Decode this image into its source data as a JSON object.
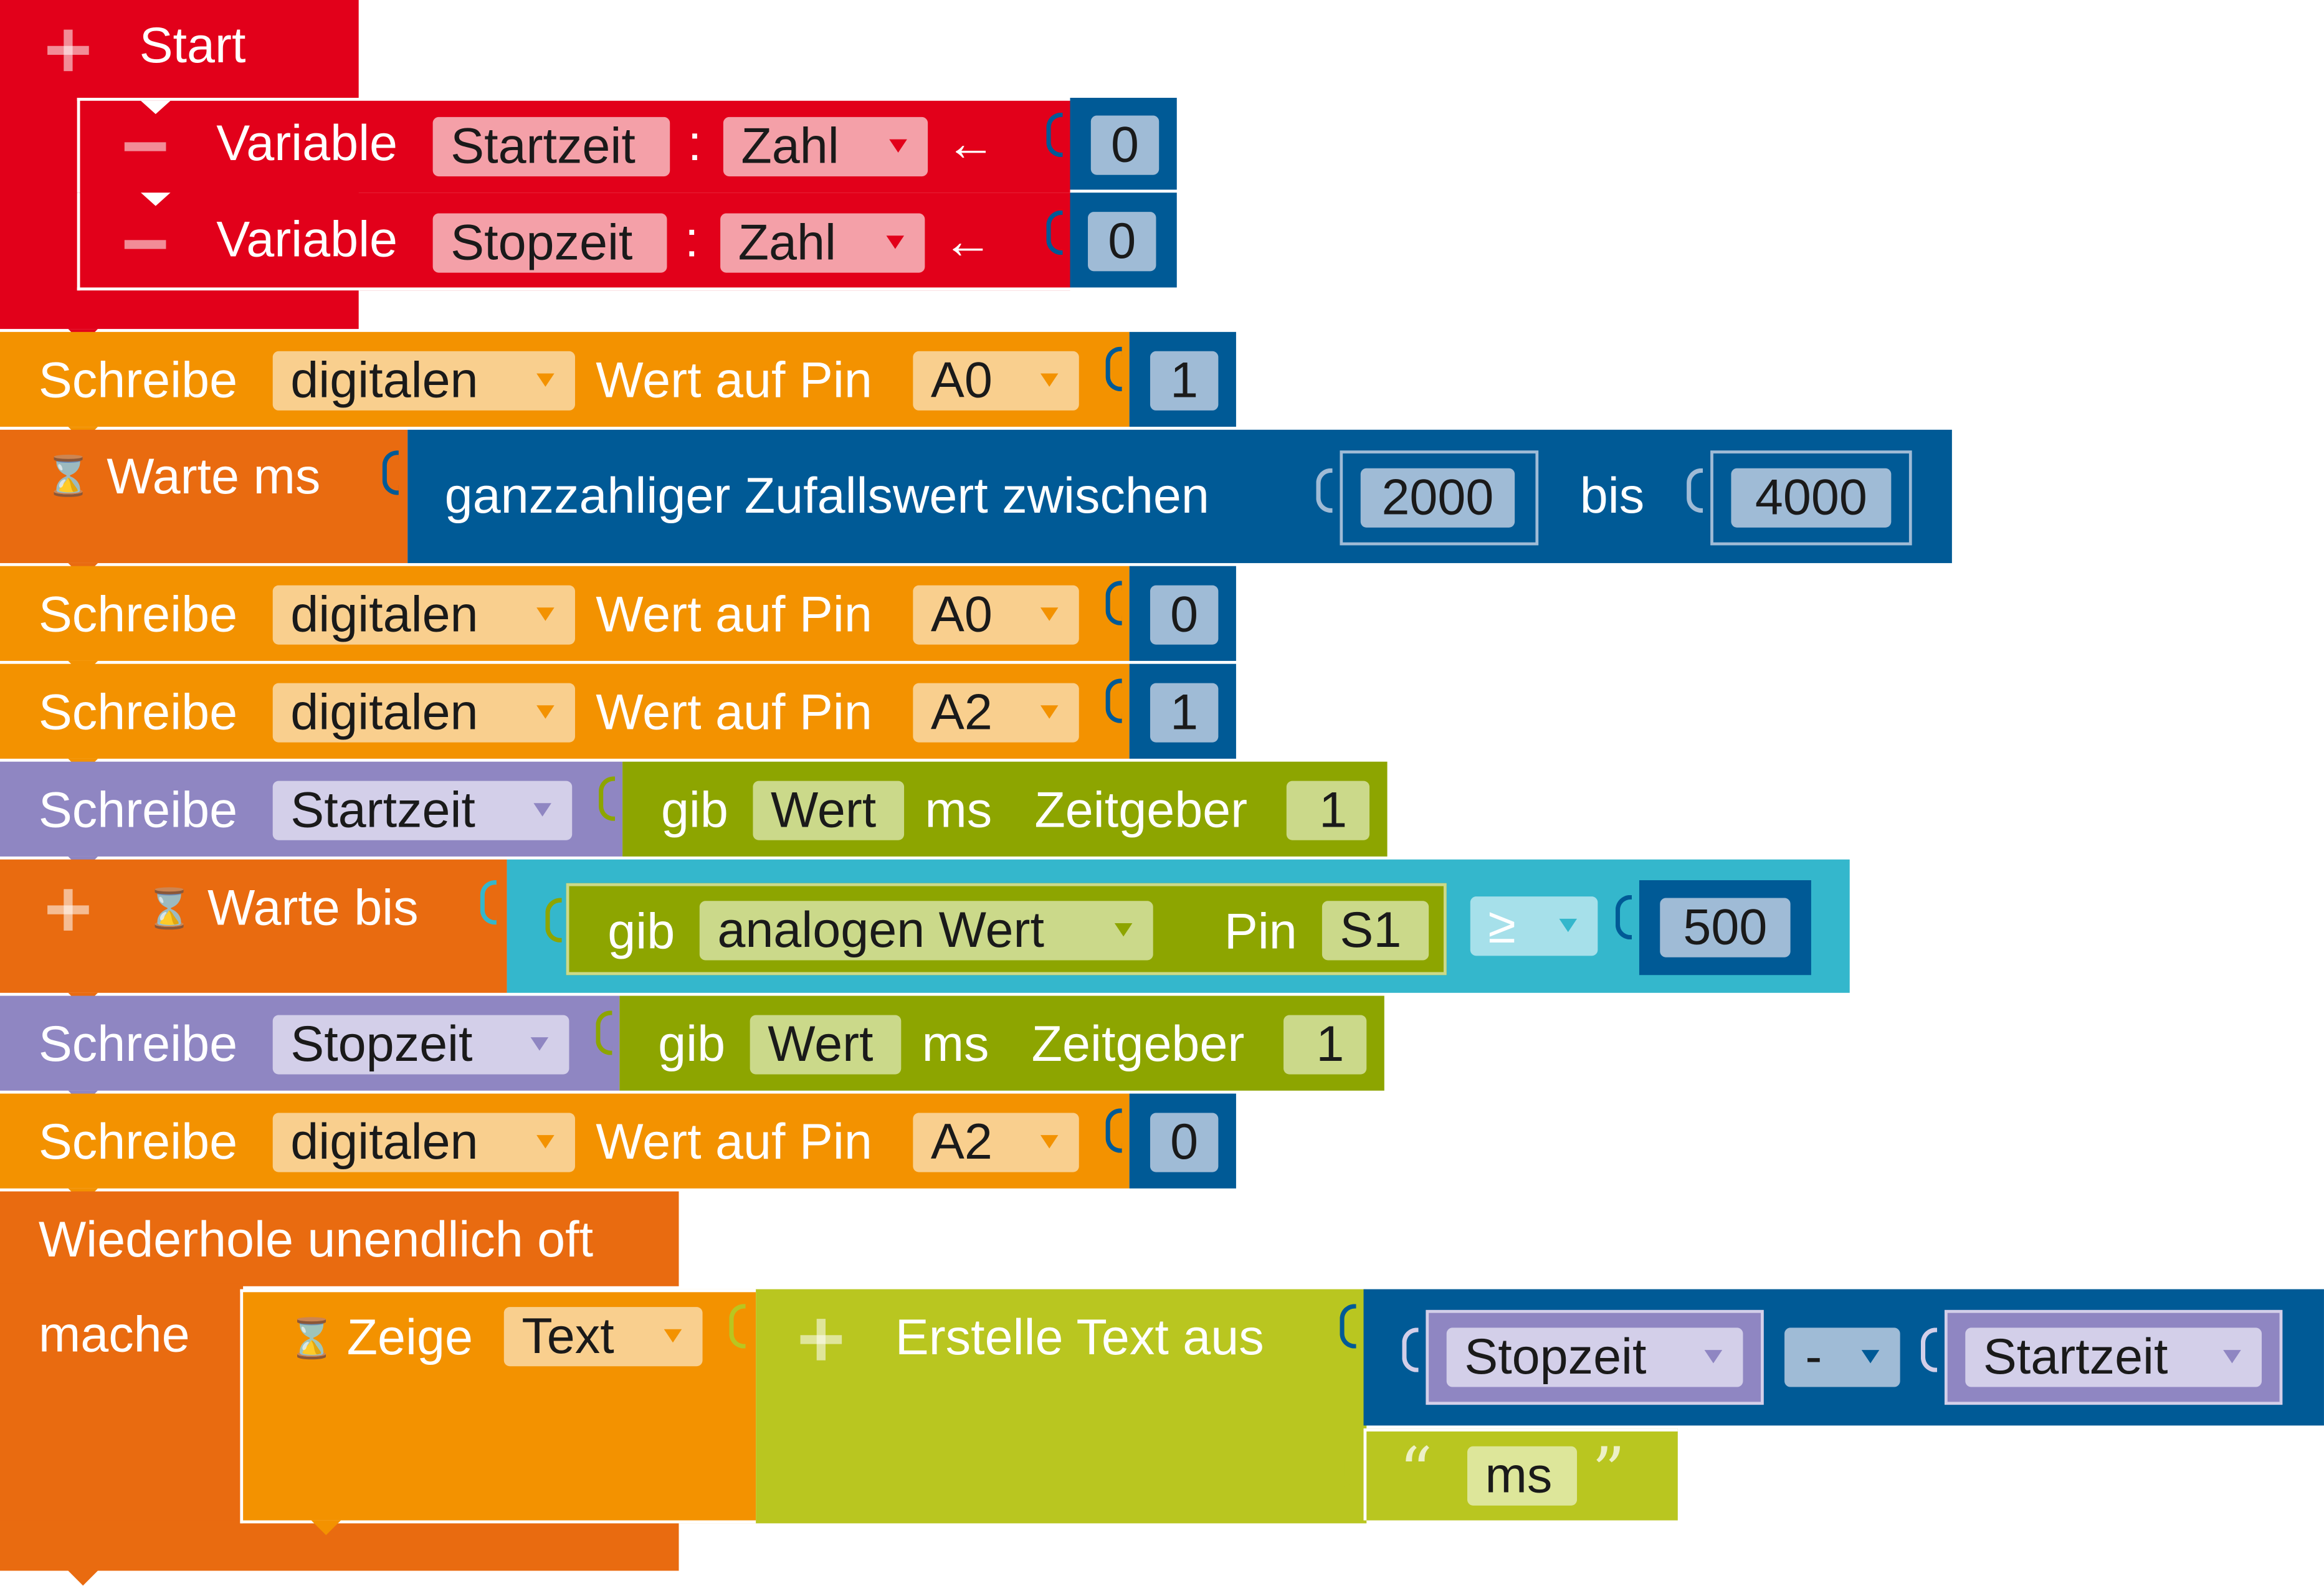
{
  "colors": {
    "control_red": "#e2001a",
    "io_orange": "#f39200",
    "wait_orange": "#e96b10",
    "variable_purple": "#8f86c2",
    "timer_green": "#8da500",
    "text_lime": "#b9c620",
    "math_blue": "#005a96",
    "logic_cyan": "#34b7cc",
    "number_field": "#9fbbd6"
  },
  "start": {
    "label": "Start"
  },
  "variables": [
    {
      "keyword": "Variable",
      "name": "Startzeit",
      "colon": ":",
      "type": "Zahl",
      "arrow": "←",
      "value": "0"
    },
    {
      "keyword": "Variable",
      "name": "Stopzeit",
      "colon": ":",
      "type": "Zahl",
      "arrow": "←",
      "value": "0"
    }
  ],
  "write_blocks": [
    {
      "keyword": "Schreibe",
      "mode": "digitalen",
      "pin_label": "Wert auf Pin",
      "pin": "A0",
      "value": "1"
    },
    {
      "keyword": "Schreibe",
      "mode": "digitalen",
      "pin_label": "Wert auf Pin",
      "pin": "A0",
      "value": "0"
    },
    {
      "keyword": "Schreibe",
      "mode": "digitalen",
      "pin_label": "Wert auf Pin",
      "pin": "A2",
      "value": "1"
    },
    {
      "keyword": "Schreibe",
      "mode": "digitalen",
      "pin_label": "Wert auf Pin",
      "pin": "A2",
      "value": "0"
    }
  ],
  "wait_ms": {
    "label": "Warte ms",
    "random_label": "ganzzahliger Zufallswert zwischen",
    "from": "2000",
    "to_label": "bis",
    "to": "4000"
  },
  "set_vars": [
    {
      "keyword": "Schreibe",
      "variable": "Startzeit",
      "get": "gib",
      "what": "Wert",
      "unit": "ms",
      "timer_label": "Zeitgeber",
      "timer": "1"
    },
    {
      "keyword": "Schreibe",
      "variable": "Stopzeit",
      "get": "gib",
      "what": "Wert",
      "unit": "ms",
      "timer_label": "Zeitgeber",
      "timer": "1"
    }
  ],
  "wait_until": {
    "label": "Warte bis",
    "get": "gib",
    "sensor": "analogen Wert",
    "pin_label": "Pin",
    "pin": "S1",
    "operator": "≥",
    "value": "500"
  },
  "loop": {
    "label": "Wiederhole unendlich oft",
    "do_label": "mache"
  },
  "show": {
    "label": "Zeige",
    "type": "Text",
    "create_label": "Erstelle Text aus",
    "left": "Stopzeit",
    "op": "-",
    "right": "Startzeit",
    "text": "ms",
    "open_quote": "“",
    "close_quote": "”"
  }
}
